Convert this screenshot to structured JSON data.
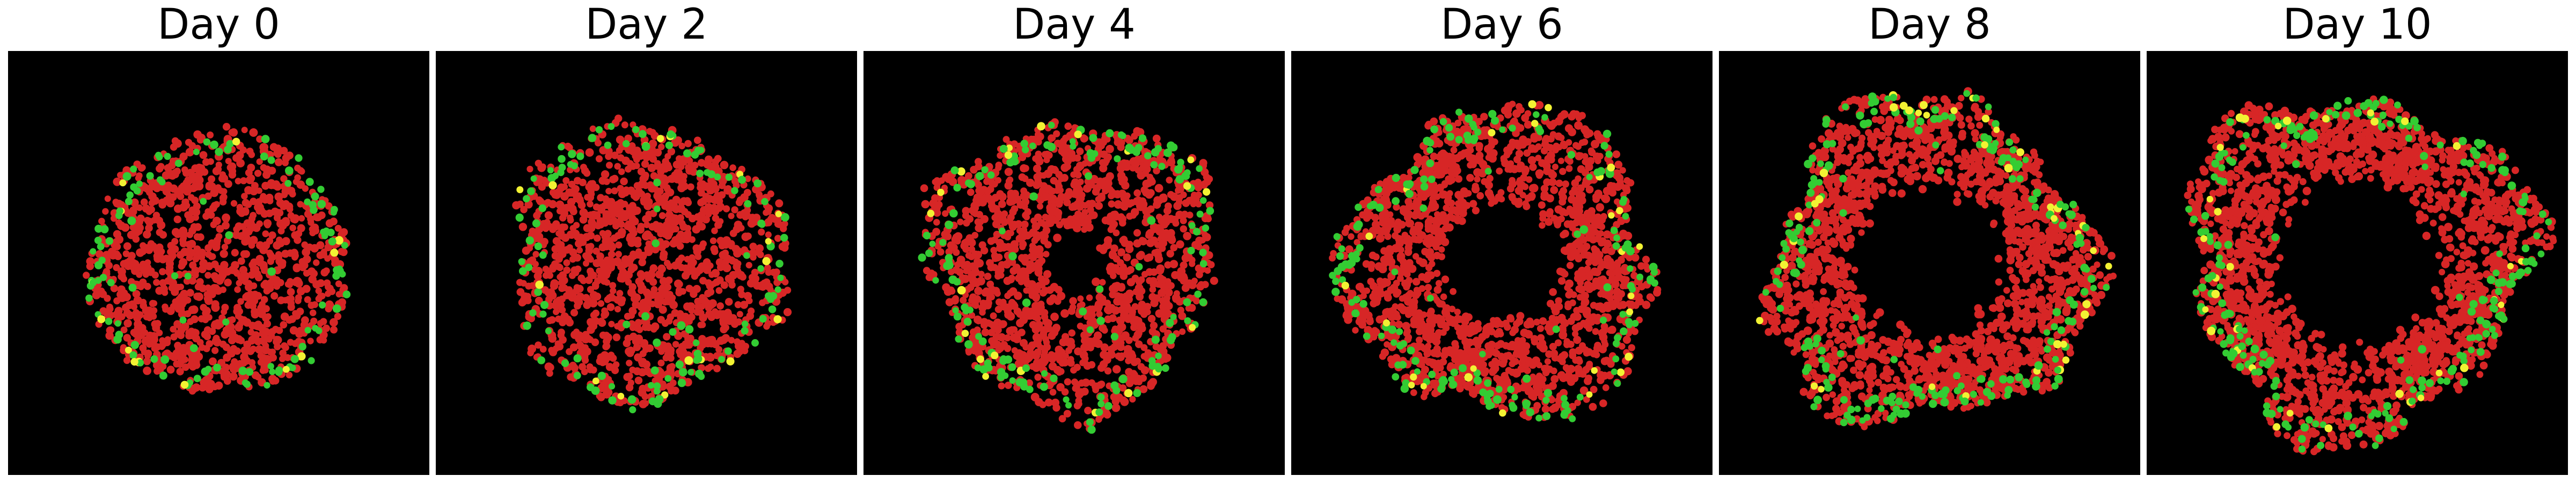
{
  "figure": {
    "background_color": "#ffffff",
    "panel_background_color": "#000000",
    "cell_colors": {
      "red": "#d72626",
      "green": "#33cc33",
      "yellow": "#f2f233"
    }
  },
  "panels": [
    {
      "title": "Day 0",
      "day": 0
    },
    {
      "title": "Day 2",
      "day": 2
    },
    {
      "title": "Day 4",
      "day": 4
    },
    {
      "title": "Day 6",
      "day": 6
    },
    {
      "title": "Day 8",
      "day": 8
    },
    {
      "title": "Day 10",
      "day": 10
    }
  ]
}
